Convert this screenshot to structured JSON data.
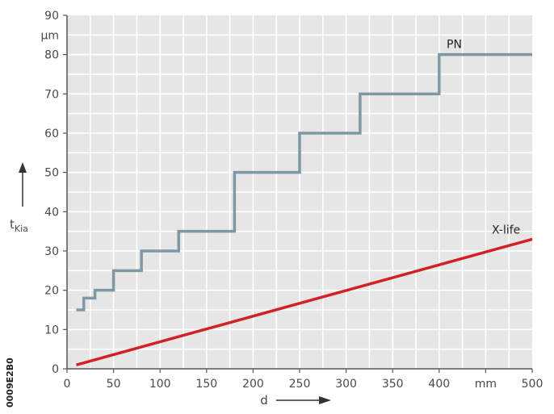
{
  "chart_data": {
    "type": "line",
    "xlabel": "d",
    "ylabel": "t",
    "ylabel_subscript": "Kia",
    "x_unit": "mm",
    "y_unit": "µm",
    "xlim": [
      0,
      500
    ],
    "ylim": [
      0,
      90
    ],
    "x_ticks": [
      0,
      50,
      100,
      150,
      200,
      250,
      300,
      350,
      400,
      450,
      500
    ],
    "y_ticks": [
      0,
      10,
      20,
      30,
      40,
      50,
      60,
      70,
      80,
      90
    ],
    "x_minor_grid_step": 25,
    "y_minor_grid_step": 5,
    "grid": true,
    "side_code": "0009E2B0",
    "colors": {
      "background": "#e6e6e6",
      "grid": "#ffffff",
      "pn": "#7f98a6",
      "xlife": "#d22027",
      "axis": "#555555"
    },
    "series": [
      {
        "name": "PN",
        "color": "#7f98a6",
        "x": [
          10,
          18,
          18,
          30,
          30,
          50,
          50,
          80,
          80,
          120,
          120,
          180,
          180,
          250,
          250,
          315,
          315,
          400,
          400,
          500
        ],
        "y": [
          15,
          15,
          18,
          18,
          20,
          20,
          25,
          25,
          30,
          30,
          35,
          35,
          50,
          50,
          60,
          60,
          70,
          70,
          80,
          80
        ]
      },
      {
        "name": "X-life",
        "color": "#d22027",
        "x": [
          10,
          500
        ],
        "y": [
          1,
          33
        ]
      }
    ]
  }
}
